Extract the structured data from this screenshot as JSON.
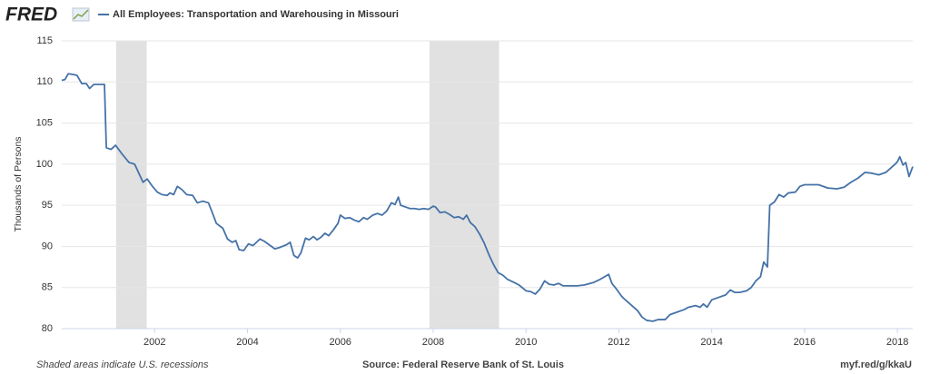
{
  "chart_data": {
    "type": "line",
    "brand": "FRED",
    "ylabel": "Thousands of Persons",
    "footer_left": "Shaded areas indicate U.S. recessions",
    "footer_center": "Source: Federal Reserve Bank of St. Louis",
    "footer_right": "myf.red/g/kkaU",
    "xlim": [
      2000,
      2018.33
    ],
    "xticks": [
      2002,
      2004,
      2006,
      2008,
      2010,
      2012,
      2014,
      2016,
      2018
    ],
    "ylim": [
      80,
      115
    ],
    "yticks": [
      80,
      85,
      90,
      95,
      100,
      105,
      110,
      115
    ],
    "grid": true,
    "recessions": [
      [
        2001.17,
        2001.83
      ],
      [
        2007.92,
        2009.42
      ]
    ],
    "recession_color": "#e1e1e1",
    "x": [
      2000.0,
      2000.07,
      2000.14,
      2000.25,
      2000.33,
      2000.43,
      2000.53,
      2000.6,
      2000.69,
      2000.8,
      2000.92,
      2000.96,
      2001.06,
      2001.16,
      2001.29,
      2001.45,
      2001.57,
      2001.75,
      2001.84,
      2001.94,
      2002.06,
      2002.16,
      2002.27,
      2002.33,
      2002.41,
      2002.49,
      2002.59,
      2002.69,
      2002.82,
      2002.92,
      2003.04,
      2003.16,
      2003.25,
      2003.33,
      2003.47,
      2003.57,
      2003.67,
      2003.75,
      2003.82,
      2003.92,
      2004.02,
      2004.12,
      2004.27,
      2004.37,
      2004.49,
      2004.59,
      2004.71,
      2004.84,
      2004.92,
      2005.0,
      2005.08,
      2005.15,
      2005.25,
      2005.33,
      2005.42,
      2005.5,
      2005.58,
      2005.67,
      2005.75,
      2005.85,
      2005.95,
      2006.0,
      2006.1,
      2006.2,
      2006.3,
      2006.4,
      2006.5,
      2006.58,
      2006.7,
      2006.8,
      2006.9,
      2007.0,
      2007.1,
      2007.18,
      2007.25,
      2007.3,
      2007.4,
      2007.5,
      2007.6,
      2007.7,
      2007.8,
      2007.9,
      2008.0,
      2008.05,
      2008.15,
      2008.25,
      2008.35,
      2008.45,
      2008.55,
      2008.65,
      2008.72,
      2008.8,
      2008.9,
      2009.0,
      2009.1,
      2009.2,
      2009.3,
      2009.4,
      2009.5,
      2009.6,
      2009.75,
      2009.85,
      2010.0,
      2010.1,
      2010.2,
      2010.3,
      2010.4,
      2010.5,
      2010.6,
      2010.7,
      2010.8,
      2010.95,
      2011.1,
      2011.25,
      2011.45,
      2011.6,
      2011.78,
      2011.85,
      2011.95,
      2012.05,
      2012.1,
      2012.2,
      2012.3,
      2012.4,
      2012.5,
      2012.6,
      2012.73,
      2012.85,
      2013.0,
      2013.1,
      2013.25,
      2013.4,
      2013.5,
      2013.65,
      2013.75,
      2013.82,
      2013.9,
      2014.0,
      2014.15,
      2014.3,
      2014.4,
      2014.5,
      2014.6,
      2014.75,
      2014.85,
      2014.95,
      2015.05,
      2015.12,
      2015.2,
      2015.25,
      2015.35,
      2015.45,
      2015.55,
      2015.65,
      2015.8,
      2015.9,
      2016.0,
      2016.3,
      2016.5,
      2016.7,
      2016.85,
      2017.0,
      2017.15,
      2017.3,
      2017.45,
      2017.6,
      2017.75,
      2017.85,
      2017.95,
      2018.0,
      2018.05,
      2018.12,
      2018.18,
      2018.25,
      2018.33
    ],
    "series": [
      {
        "name": "All Employees: Transportation and Warehousing in Missouri",
        "color": "#4572a7",
        "values": [
          110.2,
          110.3,
          111.0,
          110.9,
          110.8,
          109.8,
          109.8,
          109.2,
          109.7,
          109.7,
          109.7,
          102.0,
          101.8,
          102.3,
          101.3,
          100.2,
          100.0,
          97.8,
          98.2,
          97.4,
          96.6,
          96.3,
          96.2,
          96.5,
          96.3,
          97.3,
          96.9,
          96.3,
          96.2,
          95.3,
          95.5,
          95.3,
          94.0,
          92.8,
          92.2,
          90.9,
          90.5,
          90.7,
          89.6,
          89.5,
          90.3,
          90.1,
          90.9,
          90.6,
          90.1,
          89.7,
          89.9,
          90.2,
          90.5,
          88.9,
          88.6,
          89.2,
          91.0,
          90.8,
          91.2,
          90.8,
          91.1,
          91.6,
          91.3,
          92.0,
          92.8,
          93.8,
          93.4,
          93.5,
          93.2,
          93.0,
          93.5,
          93.3,
          93.8,
          94.0,
          93.8,
          94.3,
          95.3,
          95.1,
          96.0,
          95.0,
          94.8,
          94.6,
          94.6,
          94.5,
          94.6,
          94.5,
          94.9,
          94.8,
          94.1,
          94.2,
          93.9,
          93.5,
          93.6,
          93.3,
          93.8,
          92.9,
          92.4,
          91.5,
          90.4,
          89.0,
          87.8,
          86.8,
          86.5,
          86.0,
          85.6,
          85.3,
          84.6,
          84.5,
          84.2,
          84.8,
          85.8,
          85.4,
          85.3,
          85.5,
          85.2,
          85.2,
          85.2,
          85.3,
          85.6,
          86.0,
          86.6,
          85.5,
          84.8,
          84.0,
          83.7,
          83.2,
          82.7,
          82.2,
          81.4,
          81.0,
          80.9,
          81.1,
          81.1,
          81.7,
          82.0,
          82.3,
          82.6,
          82.8,
          82.6,
          83.0,
          82.6,
          83.5,
          83.8,
          84.1,
          84.7,
          84.4,
          84.4,
          84.6,
          85.0,
          85.8,
          86.3,
          88.1,
          87.5,
          95.0,
          95.4,
          96.3,
          96.0,
          96.5,
          96.6,
          97.3,
          97.5,
          97.5,
          97.1,
          97.0,
          97.2,
          97.8,
          98.3,
          99.0,
          98.9,
          98.7,
          99.0,
          99.5,
          100.0,
          100.3,
          100.9,
          99.9,
          100.2,
          98.5,
          99.7
        ]
      }
    ]
  }
}
